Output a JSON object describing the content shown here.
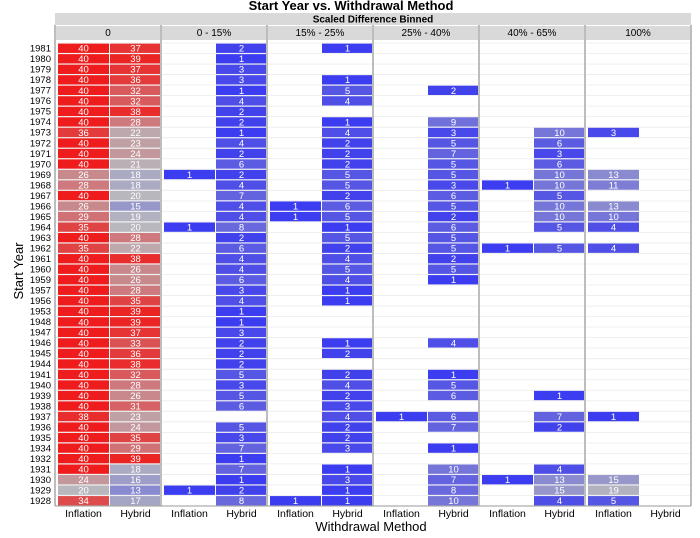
{
  "chart_data": {
    "type": "heatmap",
    "title": "Start Year vs. Withdrawal Method",
    "header_group": "Scaled Difference Binned",
    "xlabel": "Withdrawal Method",
    "ylabel": "Start Year",
    "bins": [
      "0",
      "0 - 15%",
      "15% - 25%",
      "25% - 40%",
      "40% - 65%",
      "100%"
    ],
    "methods": [
      "Inflation",
      "Hybrid"
    ],
    "years": [
      1981,
      1980,
      1979,
      1978,
      1977,
      1976,
      1975,
      1974,
      1973,
      1972,
      1971,
      1970,
      1969,
      1968,
      1967,
      1966,
      1965,
      1964,
      1963,
      1962,
      1961,
      1960,
      1959,
      1957,
      1956,
      1953,
      1948,
      1947,
      1946,
      1945,
      1944,
      1941,
      1940,
      1939,
      1938,
      1937,
      1936,
      1935,
      1934,
      1932,
      1931,
      1930,
      1929,
      1928
    ],
    "bin_values": {
      "0": {
        "Inflation": [
          40,
          40,
          40,
          40,
          40,
          40,
          40,
          40,
          36,
          40,
          40,
          40,
          26,
          28,
          40,
          26,
          29,
          35,
          40,
          35,
          40,
          40,
          40,
          40,
          40,
          40,
          40,
          40,
          40,
          40,
          40,
          40,
          40,
          40,
          40,
          38,
          40,
          40,
          40,
          40,
          40,
          24,
          20,
          34
        ],
        "Hybrid": [
          37,
          39,
          37,
          36,
          32,
          32,
          38,
          28,
          22,
          23,
          24,
          21,
          18,
          18,
          20,
          15,
          19,
          20,
          28,
          22,
          38,
          26,
          26,
          28,
          35,
          39,
          39,
          37,
          33,
          36,
          38,
          32,
          28,
          26,
          31,
          23,
          24,
          35,
          29,
          39,
          18,
          16,
          13,
          17
        ]
      },
      "0 - 15%": {
        "Inflation": [
          null,
          null,
          null,
          null,
          null,
          null,
          null,
          null,
          null,
          null,
          null,
          null,
          1,
          null,
          null,
          null,
          null,
          1,
          null,
          null,
          null,
          null,
          null,
          null,
          null,
          null,
          null,
          null,
          null,
          null,
          null,
          null,
          null,
          null,
          null,
          null,
          null,
          null,
          null,
          null,
          null,
          null,
          1,
          null
        ],
        "Hybrid": [
          2,
          1,
          3,
          3,
          1,
          4,
          2,
          2,
          1,
          4,
          2,
          6,
          2,
          4,
          7,
          4,
          4,
          8,
          2,
          6,
          4,
          4,
          6,
          3,
          4,
          1,
          1,
          3,
          2,
          2,
          2,
          5,
          3,
          5,
          6,
          null,
          5,
          3,
          7,
          1,
          7,
          1,
          2,
          8
        ]
      },
      "15% - 25%": {
        "Inflation": [
          null,
          null,
          null,
          null,
          null,
          null,
          null,
          null,
          null,
          null,
          null,
          null,
          null,
          null,
          null,
          1,
          1,
          null,
          null,
          null,
          null,
          null,
          null,
          null,
          null,
          null,
          null,
          null,
          null,
          null,
          null,
          null,
          null,
          null,
          null,
          null,
          null,
          null,
          null,
          null,
          null,
          null,
          null,
          1
        ],
        "Hybrid": [
          1,
          null,
          null,
          1,
          5,
          4,
          null,
          1,
          4,
          2,
          2,
          2,
          5,
          5,
          2,
          6,
          5,
          1,
          5,
          2,
          4,
          5,
          4,
          1,
          1,
          null,
          null,
          null,
          1,
          2,
          null,
          2,
          4,
          2,
          3,
          4,
          2,
          2,
          3,
          null,
          1,
          3,
          1,
          1
        ]
      },
      "25% - 40%": {
        "Inflation": [
          null,
          null,
          null,
          null,
          null,
          null,
          null,
          null,
          null,
          null,
          null,
          null,
          null,
          null,
          null,
          null,
          null,
          null,
          null,
          null,
          null,
          null,
          null,
          null,
          null,
          null,
          null,
          null,
          null,
          null,
          null,
          null,
          null,
          null,
          null,
          1,
          null,
          null,
          null,
          null,
          null,
          null,
          null,
          null
        ],
        "Hybrid": [
          null,
          null,
          null,
          null,
          2,
          null,
          null,
          9,
          3,
          5,
          7,
          5,
          5,
          3,
          6,
          5,
          2,
          6,
          5,
          5,
          2,
          5,
          1,
          null,
          null,
          null,
          null,
          null,
          4,
          null,
          null,
          1,
          5,
          6,
          null,
          6,
          7,
          null,
          1,
          null,
          10,
          7,
          8,
          10
        ]
      },
      "40% - 65%": {
        "Inflation": [
          null,
          null,
          null,
          null,
          null,
          null,
          null,
          null,
          null,
          null,
          null,
          null,
          null,
          1,
          null,
          null,
          null,
          null,
          null,
          1,
          null,
          null,
          null,
          null,
          null,
          null,
          null,
          null,
          null,
          null,
          null,
          null,
          null,
          null,
          null,
          null,
          null,
          null,
          null,
          null,
          null,
          1,
          null,
          null
        ],
        "Hybrid": [
          null,
          null,
          null,
          null,
          null,
          null,
          null,
          null,
          10,
          6,
          3,
          6,
          10,
          10,
          5,
          10,
          10,
          5,
          null,
          5,
          null,
          null,
          null,
          null,
          null,
          null,
          null,
          null,
          null,
          null,
          null,
          null,
          null,
          1,
          null,
          7,
          2,
          null,
          null,
          null,
          4,
          13,
          15,
          4
        ]
      },
      "100%": {
        "Inflation": [
          null,
          null,
          null,
          null,
          null,
          null,
          null,
          null,
          3,
          null,
          null,
          null,
          13,
          11,
          null,
          13,
          10,
          4,
          null,
          4,
          null,
          null,
          null,
          null,
          null,
          null,
          null,
          null,
          null,
          null,
          null,
          null,
          null,
          null,
          null,
          1,
          null,
          null,
          null,
          null,
          null,
          15,
          19,
          5
        ],
        "Hybrid": [
          null,
          null,
          null,
          null,
          null,
          null,
          null,
          null,
          null,
          null,
          null,
          null,
          null,
          null,
          null,
          null,
          null,
          null,
          null,
          null,
          null,
          null,
          null,
          null,
          null,
          null,
          null,
          null,
          null,
          null,
          null,
          null,
          null,
          null,
          null,
          null,
          null,
          null,
          null,
          null,
          null,
          null,
          null,
          null
        ]
      }
    },
    "colors": {
      "high": "#ee1c1c",
      "mid": "#b7b7bd",
      "low": "#3c3cf0",
      "header_bg": "#d9d9d9",
      "divider": "#bdbdbd"
    },
    "color_scale": {
      "low_value": 1,
      "mid_value": 20,
      "high_value": 40
    }
  }
}
